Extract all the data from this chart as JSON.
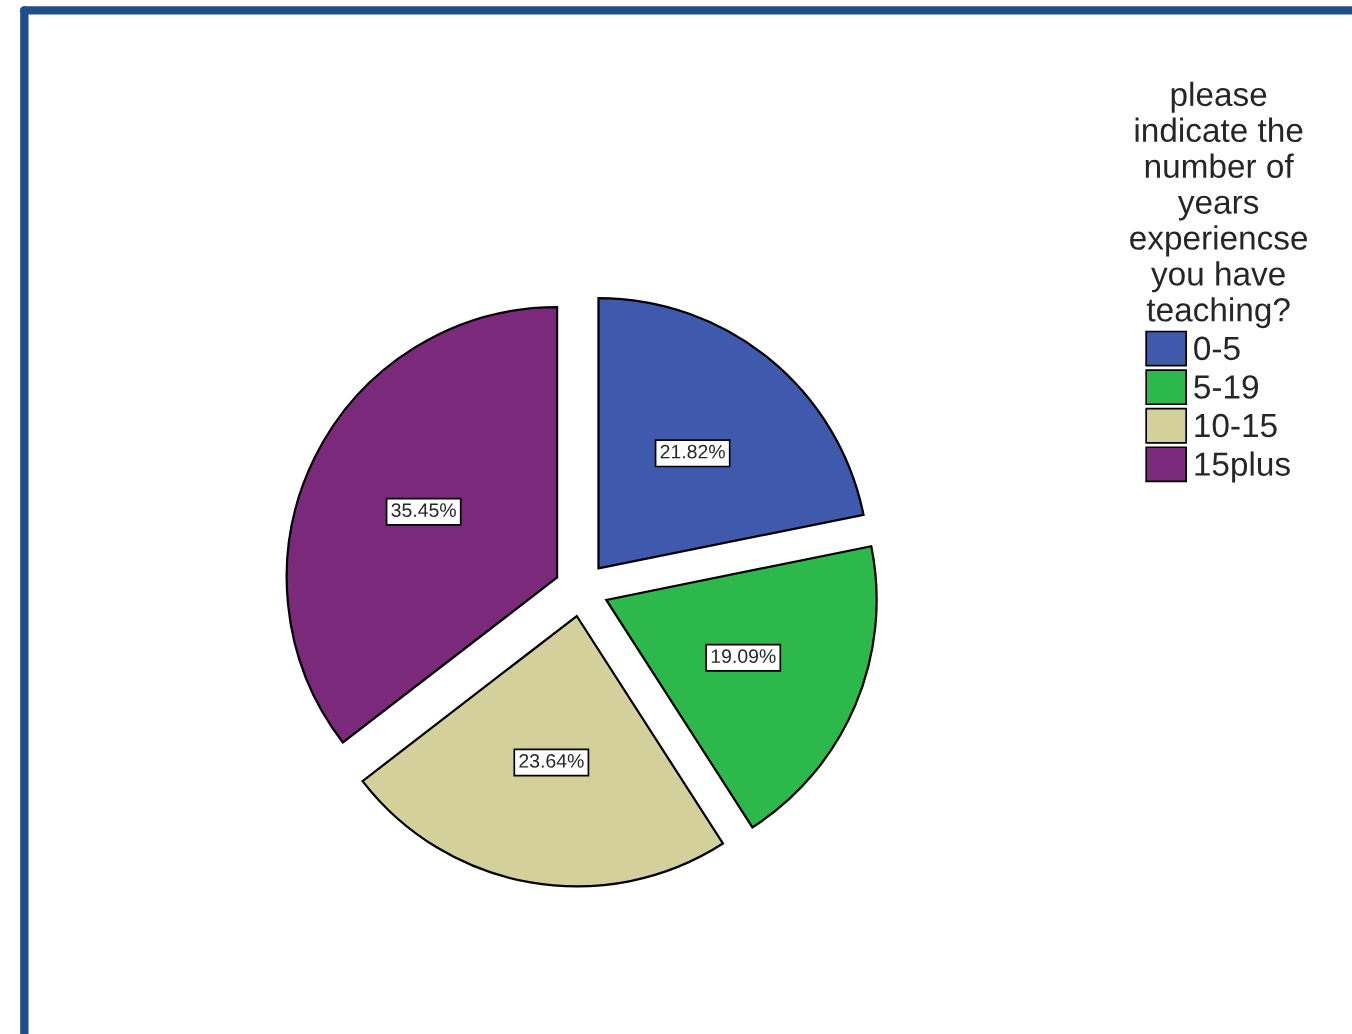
{
  "chart_data": {
    "type": "pie",
    "legend_title": "please\nindicate the\nnumber of\nyears\nexperiencse\nyou have\nteaching?",
    "categories": [
      "0-5",
      "5-19",
      "10-15",
      "15plus"
    ],
    "values": [
      21.82,
      19.09,
      23.64,
      35.45
    ],
    "value_labels": [
      "21.82%",
      "19.09%",
      "23.64%",
      "35.45%"
    ],
    "colors": [
      "#3f59ad",
      "#2db84b",
      "#d4d09b",
      "#7b2a7b"
    ],
    "legend": "top right"
  }
}
